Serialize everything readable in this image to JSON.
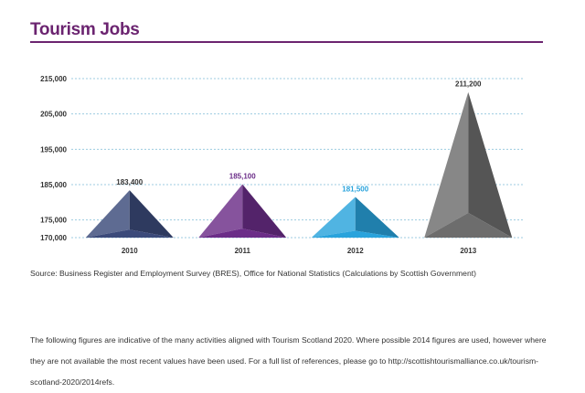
{
  "title": "Tourism Jobs",
  "colors": {
    "title": "#6b2470",
    "grid": "#9ccbe0",
    "bars": [
      "#3b4a7a",
      "#6b2d88",
      "#29a3dc",
      "#6d6d6d"
    ],
    "value_labels": [
      "#333333",
      "#6b2d88",
      "#29a3dc",
      "#333333"
    ]
  },
  "chart_data": {
    "type": "bar",
    "mark_style": "pyramid",
    "categories": [
      "2010",
      "2011",
      "2012",
      "2013"
    ],
    "values": [
      183400,
      185100,
      181500,
      211200
    ],
    "value_labels": [
      "183,400",
      "185,100",
      "181,500",
      "211,200"
    ],
    "yticks": [
      170000,
      175000,
      185000,
      195000,
      205000,
      215000
    ],
    "ytick_labels": [
      "170,000",
      "175,000",
      "185,000",
      "195,000",
      "205,000",
      "215,000"
    ],
    "ylim": [
      170000,
      215000
    ],
    "grid": true,
    "grid_style": "dashed",
    "xlabel": "",
    "ylabel": ""
  },
  "source": "Source: Business Register and Employment Survey (BRES), Office for National Statistics (Calculations by Scottish Government)",
  "note": "The following figures are indicative of the many activities aligned with Tourism Scotland 2020. Where possible 2014 figures are used, however where they are not available the most recent values have been used. For a full list of references, please go to http://scottishtourismalliance.co.uk/tourism-scotland-2020/2014refs."
}
